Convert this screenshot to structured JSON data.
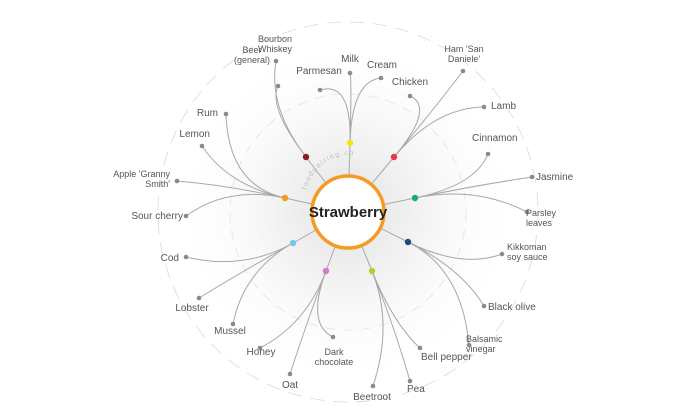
{
  "center": {
    "label": "Strawberry"
  },
  "watermark": "foodpairing.com",
  "colors": {
    "ring": "#f39c21",
    "line": "#a8a8a8",
    "dot": "#8a8a8a",
    "text": "#555555",
    "guide": "#d9d9d9"
  },
  "clusters": [
    {
      "name": "dark-red",
      "color": "#8e1b2c"
    },
    {
      "name": "yellow",
      "color": "#f2e21c"
    },
    {
      "name": "red",
      "color": "#e8384a"
    },
    {
      "name": "teal",
      "color": "#1fa67a"
    },
    {
      "name": "navy",
      "color": "#1d4a7f"
    },
    {
      "name": "lime",
      "color": "#b7cf2b"
    },
    {
      "name": "pink",
      "color": "#d17ac8"
    },
    {
      "name": "light-blue",
      "color": "#7cc3ea"
    },
    {
      "name": "orange",
      "color": "#f39c21"
    }
  ],
  "ingredients": [
    {
      "id": "beer",
      "label": [
        "Beer",
        "(general)"
      ],
      "cluster": "dark-red"
    },
    {
      "id": "bourbon",
      "label": [
        "Bourbon",
        "Whiskey"
      ],
      "cluster": "dark-red"
    },
    {
      "id": "parmesan",
      "label": [
        "Parmesan"
      ],
      "cluster": "yellow"
    },
    {
      "id": "milk",
      "label": [
        "Milk"
      ],
      "cluster": "yellow"
    },
    {
      "id": "cream",
      "label": [
        "Cream"
      ],
      "cluster": "yellow"
    },
    {
      "id": "chicken",
      "label": [
        "Chicken"
      ],
      "cluster": "red"
    },
    {
      "id": "ham",
      "label": [
        "Ham 'San",
        "Daniele'"
      ],
      "cluster": "red"
    },
    {
      "id": "lamb",
      "label": [
        "Lamb"
      ],
      "cluster": "red"
    },
    {
      "id": "cinnamon",
      "label": [
        "Cinnamon"
      ],
      "cluster": "teal"
    },
    {
      "id": "jasmine",
      "label": [
        "Jasmine"
      ],
      "cluster": "teal"
    },
    {
      "id": "parsley",
      "label": [
        "Parsley",
        "leaves"
      ],
      "cluster": "teal"
    },
    {
      "id": "kikkoman",
      "label": [
        "Kikkoman",
        "soy sauce"
      ],
      "cluster": "navy"
    },
    {
      "id": "blackolive",
      "label": [
        "Black olive"
      ],
      "cluster": "navy"
    },
    {
      "id": "balsamic",
      "label": [
        "Balsamic",
        "vinegar"
      ],
      "cluster": "navy"
    },
    {
      "id": "bellpepper",
      "label": [
        "Bell pepper"
      ],
      "cluster": "lime"
    },
    {
      "id": "pea",
      "label": [
        "Pea"
      ],
      "cluster": "lime"
    },
    {
      "id": "beetroot",
      "label": [
        "Beetroot"
      ],
      "cluster": "lime"
    },
    {
      "id": "darkchoc",
      "label": [
        "Dark",
        "chocolate"
      ],
      "cluster": "pink"
    },
    {
      "id": "oat",
      "label": [
        "Oat"
      ],
      "cluster": "pink"
    },
    {
      "id": "honey",
      "label": [
        "Honey"
      ],
      "cluster": "pink"
    },
    {
      "id": "mussel",
      "label": [
        "Mussel"
      ],
      "cluster": "light-blue"
    },
    {
      "id": "lobster",
      "label": [
        "Lobster"
      ],
      "cluster": "light-blue"
    },
    {
      "id": "cod",
      "label": [
        "Cod"
      ],
      "cluster": "light-blue"
    },
    {
      "id": "sourcherry",
      "label": [
        "Sour cherry"
      ],
      "cluster": "orange"
    },
    {
      "id": "apple",
      "label": [
        "Apple 'Granny",
        "Smith'"
      ],
      "cluster": "orange"
    },
    {
      "id": "lemon",
      "label": [
        "Lemon"
      ],
      "cluster": "orange"
    },
    {
      "id": "rum",
      "label": [
        "Rum"
      ],
      "cluster": "orange"
    }
  ]
}
